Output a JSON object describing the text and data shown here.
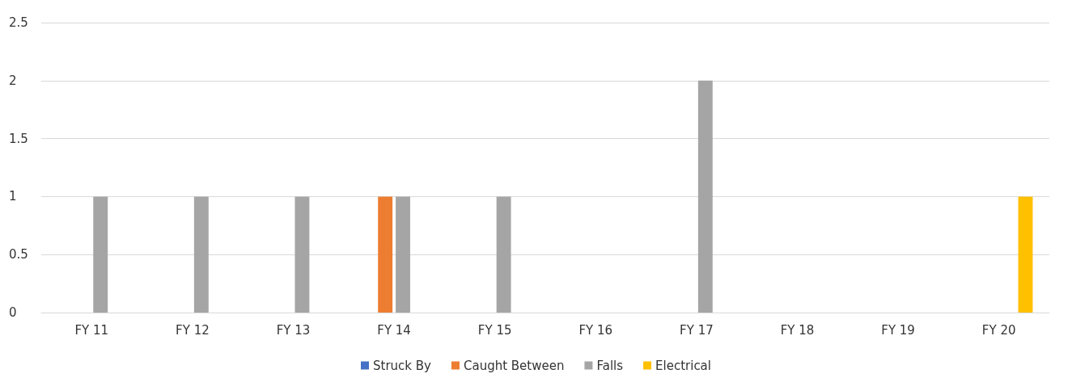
{
  "chart_data": {
    "type": "bar",
    "categories": [
      "FY 11",
      "FY 12",
      "FY 13",
      "FY 14",
      "FY 15",
      "FY 16",
      "FY 17",
      "FY 18",
      "FY 19",
      "FY 20"
    ],
    "series": [
      {
        "name": "Struck By",
        "color": "#4472c4",
        "values": [
          0,
          0,
          0,
          0,
          0,
          0,
          0,
          0,
          0,
          0
        ]
      },
      {
        "name": "Caught Between",
        "color": "#ed7d31",
        "values": [
          0,
          0,
          0,
          1,
          0,
          0,
          0,
          0,
          0,
          0
        ]
      },
      {
        "name": "Falls",
        "color": "#a5a5a5",
        "values": [
          1,
          1,
          1,
          1,
          1,
          0,
          2,
          0,
          0,
          0
        ]
      },
      {
        "name": "Electrical",
        "color": "#ffc000",
        "values": [
          0,
          0,
          0,
          0,
          0,
          0,
          0,
          0,
          0,
          1
        ]
      }
    ],
    "ylim": [
      0,
      2.5
    ],
    "yticks": [
      0,
      0.5,
      1,
      1.5,
      2,
      2.5
    ],
    "grid": "y",
    "legend": "bottom"
  }
}
